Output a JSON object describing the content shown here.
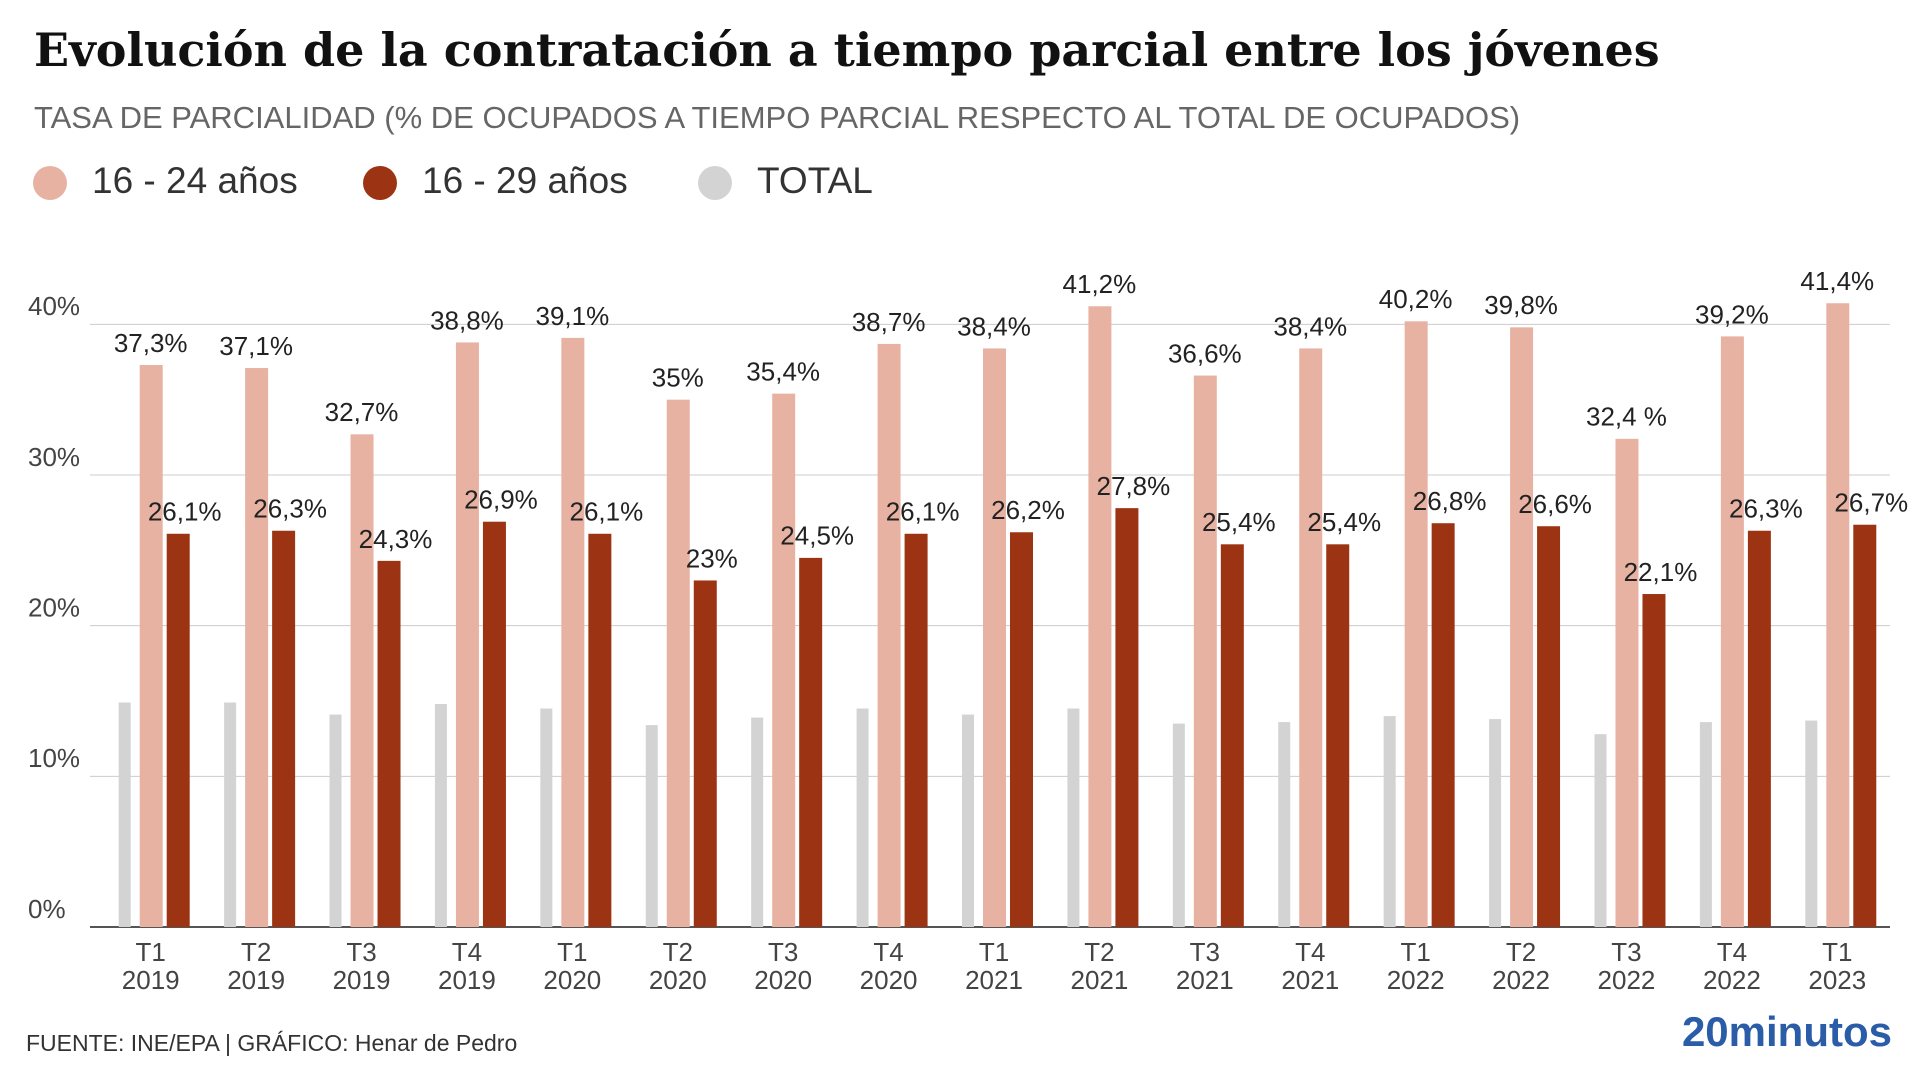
{
  "chart_data": {
    "type": "bar",
    "title": "Evolución de la contratación a tiempo parcial entre los jóvenes",
    "subtitle": "TASA DE PARCIALIDAD (% DE OCUPADOS A TIEMPO PARCIAL RESPECTO AL TOTAL DE OCUPADOS)",
    "categories": [
      "T1 2019",
      "T2 2019",
      "T3 2019",
      "T4 2019",
      "T1 2020",
      "T2 2020",
      "T3 2020",
      "T4 2020",
      "T1 2021",
      "T2 2021",
      "T3 2021",
      "T4 2021",
      "T1 2022",
      "T2 2022",
      "T3 2022",
      "T4 2022",
      "T1 2023"
    ],
    "series": [
      {
        "name": "16 - 24 años",
        "color": "#e8b2a3",
        "values": [
          37.3,
          37.1,
          32.7,
          38.8,
          39.1,
          35,
          35.4,
          38.7,
          38.4,
          41.2,
          36.6,
          38.4,
          40.2,
          39.8,
          32.4,
          39.2,
          41.4
        ],
        "value_labels": [
          "37,3%",
          "37,1%",
          "32,7%",
          "38,8%",
          "39,1%",
          "35%",
          "35,4%",
          "38,7%",
          "38,4%",
          "41,2%",
          "36,6%",
          "38,4%",
          "40,2%",
          "39,8%",
          "32,4 %",
          "39,2%",
          "41,4%"
        ]
      },
      {
        "name": "16 - 29 años",
        "color": "#9c3413",
        "values": [
          26.1,
          26.3,
          24.3,
          26.9,
          26.1,
          23,
          24.5,
          26.1,
          26.2,
          27.8,
          25.4,
          25.4,
          26.8,
          26.6,
          22.1,
          26.3,
          26.7
        ],
        "value_labels": [
          "26,1%",
          "26,3%",
          "24,3%",
          "26,9%",
          "26,1%",
          "23%",
          "24,5%",
          "26,1%",
          "26,2%",
          "27,8%",
          "25,4%",
          "25,4%",
          "26,8%",
          "26,6%",
          "22,1%",
          "26,3%",
          "26,7%"
        ]
      },
      {
        "name": "TOTAL",
        "color": "#d3d3d3",
        "values": [
          14.9,
          14.9,
          14.1,
          14.8,
          14.5,
          13.4,
          13.9,
          14.5,
          14.1,
          14.5,
          13.5,
          13.6,
          14.0,
          13.8,
          12.8,
          13.6,
          13.7
        ]
      }
    ],
    "ylim": [
      0,
      45
    ],
    "yticks": [
      {
        "value": 0,
        "label": "0%"
      },
      {
        "value": 10,
        "label": "10%"
      },
      {
        "value": 20,
        "label": "20%"
      },
      {
        "value": 30,
        "label": "30%"
      },
      {
        "value": 40,
        "label": "40%"
      }
    ],
    "grid": true,
    "legend": "top-left",
    "source": "FUENTE: INE/EPA  |  GRÁFICO: Henar de Pedro",
    "brand": "20minutos"
  }
}
